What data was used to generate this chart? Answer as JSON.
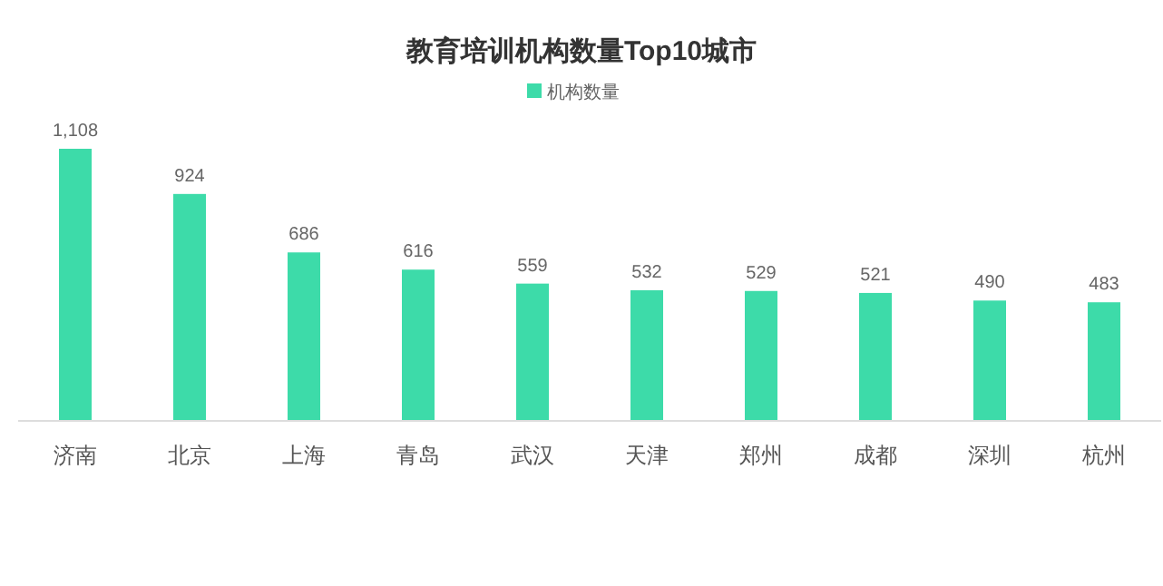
{
  "chart_data": {
    "type": "bar",
    "title": "教育培训机构数量Top10城市",
    "categories": [
      "济南",
      "北京",
      "上海",
      "青岛",
      "武汉",
      "天津",
      "郑州",
      "成都",
      "深圳",
      "杭州"
    ],
    "series": [
      {
        "name": "机构数量",
        "color": "#3ddba9",
        "values": [
          1108,
          924,
          686,
          616,
          559,
          532,
          529,
          521,
          490,
          483
        ],
        "value_labels": [
          "1,108",
          "924",
          "686",
          "616",
          "559",
          "532",
          "529",
          "521",
          "490",
          "483"
        ]
      }
    ],
    "legend": "top",
    "grid": false
  }
}
